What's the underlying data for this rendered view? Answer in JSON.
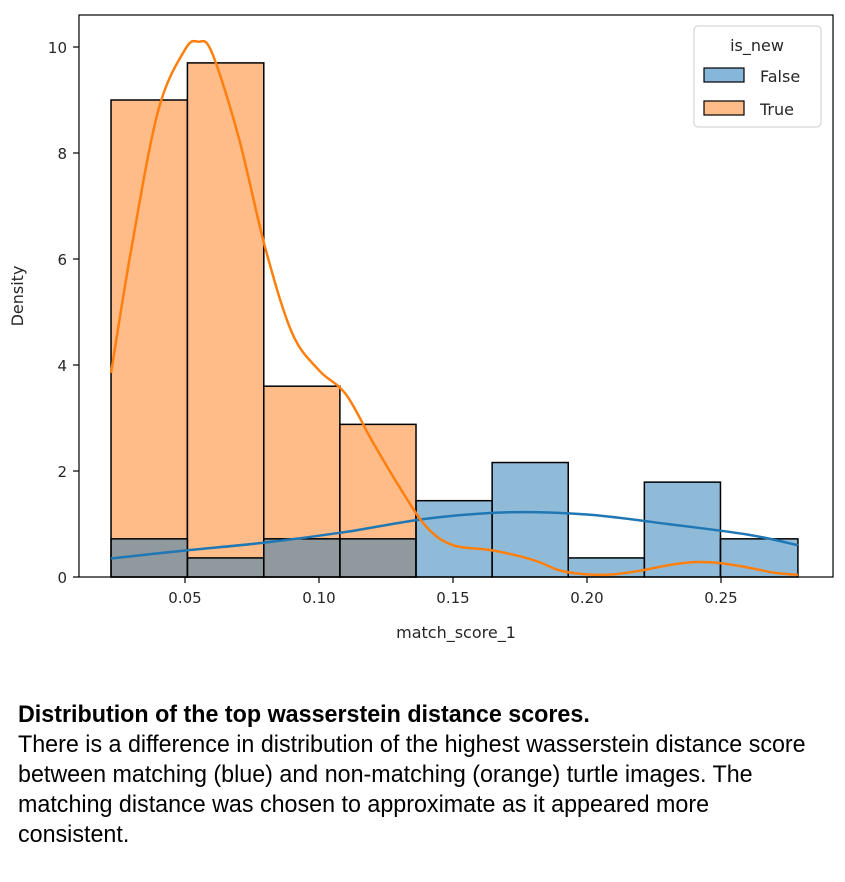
{
  "chart_data": {
    "type": "bar",
    "subtype": "overlaid histogram with KDE",
    "xlabel": "match_score_1",
    "ylabel": "Density",
    "xlim": [
      0.01,
      0.29
    ],
    "ylim": [
      0,
      10.6
    ],
    "xticks": [
      0.05,
      0.1,
      0.15,
      0.2,
      0.25
    ],
    "xtick_labels": [
      "0.05",
      "0.10",
      "0.15",
      "0.20",
      "0.25"
    ],
    "yticks": [
      0,
      2,
      4,
      6,
      8,
      10
    ],
    "ytick_labels": [
      "0",
      "2",
      "4",
      "6",
      "8",
      "10"
    ],
    "bin_edges": [
      0.0224,
      0.0509,
      0.0794,
      0.1078,
      0.1362,
      0.1646,
      0.193,
      0.2214,
      0.2498,
      0.2787
    ],
    "legend": {
      "title": "is_new",
      "position": "top-right"
    },
    "series": [
      {
        "name": "False",
        "color": "#1f77b4",
        "fill": "#86b6d9",
        "values": [
          0.72,
          0.36,
          0.72,
          0.72,
          1.44,
          2.16,
          0.36,
          1.79,
          0.72
        ],
        "kde": {
          "x": [
            0.0224,
            0.05,
            0.08,
            0.11,
            0.14,
            0.17,
            0.2,
            0.23,
            0.26,
            0.2787
          ],
          "y": [
            0.35,
            0.5,
            0.65,
            0.85,
            1.1,
            1.22,
            1.18,
            1.0,
            0.8,
            0.6
          ]
        }
      },
      {
        "name": "True",
        "color": "#ff7f0e",
        "fill": "#ffbb88",
        "values": [
          9.0,
          9.7,
          3.6,
          2.88,
          0.0,
          0.0,
          0.0,
          0.0,
          0.0
        ],
        "kde": {
          "x": [
            0.0224,
            0.03,
            0.04,
            0.05,
            0.055,
            0.06,
            0.07,
            0.08,
            0.09,
            0.1,
            0.11,
            0.12,
            0.13,
            0.14,
            0.15,
            0.165,
            0.18,
            0.19,
            0.2,
            0.21,
            0.22,
            0.23,
            0.24,
            0.25,
            0.26,
            0.27,
            0.2787
          ],
          "y": [
            3.85,
            6.2,
            8.8,
            9.95,
            10.1,
            9.9,
            8.3,
            6.2,
            4.6,
            3.9,
            3.45,
            2.55,
            1.7,
            0.95,
            0.6,
            0.5,
            0.32,
            0.12,
            0.05,
            0.05,
            0.12,
            0.22,
            0.28,
            0.26,
            0.18,
            0.08,
            0.04
          ]
        }
      }
    ]
  },
  "caption": {
    "title": "Distribution of the top wasserstein distance scores.",
    "body": "There is a difference in distribution of the highest wasserstein distance score between matching (blue) and non-matching (orange) turtle images. The matching distance was chosen to approximate as it appeared more consistent."
  }
}
